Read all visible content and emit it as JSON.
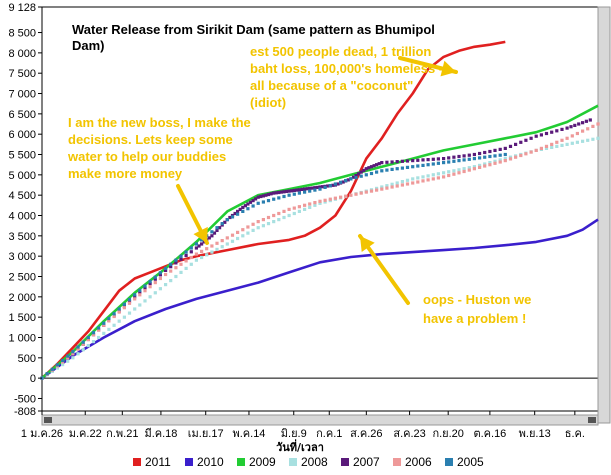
{
  "chart_data": {
    "type": "line",
    "title_lines": [
      "Water Release from Sirikit Dam (same pattern as Bhumipol",
      "Dam)"
    ],
    "xlabel": "วันที่/เวลา",
    "ylabel": "",
    "ylim": [
      -808,
      9128
    ],
    "x_range_days": [
      0,
      360
    ],
    "y_ticks": [
      -808,
      -500,
      0,
      500,
      1000,
      1500,
      2000,
      2500,
      3000,
      3500,
      4000,
      4500,
      5000,
      5500,
      6000,
      6500,
      7000,
      7500,
      8000,
      8500,
      9128
    ],
    "y_tick_labels": [
      "-808",
      "-500",
      "0",
      "500",
      "1 000",
      "1 500",
      "2 000",
      "2 500",
      "3 000",
      "3 500",
      "4 000",
      "4 500",
      "5 000",
      "5 500",
      "6 000",
      "6 500",
      "7 000",
      "7 500",
      "8 000",
      "8 500",
      "9 128"
    ],
    "x_ticks": [
      {
        "day": 0,
        "label": "1 ม.ค.26"
      },
      {
        "day": 28,
        "label": "ม.ค.22"
      },
      {
        "day": 52,
        "label": "ก.พ.21"
      },
      {
        "day": 77,
        "label": "มี.ค.18"
      },
      {
        "day": 106,
        "label": "เม.ย.17"
      },
      {
        "day": 134,
        "label": "พ.ค.14"
      },
      {
        "day": 163,
        "label": "มิ.ย.9"
      },
      {
        "day": 186,
        "label": "ก.ค.1"
      },
      {
        "day": 210,
        "label": "ส.ค.26"
      },
      {
        "day": 238,
        "label": "ส.ค.23"
      },
      {
        "day": 263,
        "label": "ก.ย.20"
      },
      {
        "day": 290,
        "label": "ต.ค.16"
      },
      {
        "day": 319,
        "label": "พ.ย.13"
      },
      {
        "day": 345,
        "label": "ธ.ค."
      }
    ],
    "series": [
      {
        "name": "2011",
        "color": "#e02020",
        "style": "line",
        "x": [
          0,
          10,
          20,
          30,
          40,
          50,
          60,
          70,
          80,
          90,
          100,
          120,
          140,
          160,
          170,
          180,
          190,
          200,
          210,
          220,
          230,
          240,
          250,
          260,
          270,
          280,
          290,
          300
        ],
        "y": [
          0,
          350,
          750,
          1150,
          1650,
          2150,
          2450,
          2600,
          2750,
          2900,
          3000,
          3150,
          3300,
          3400,
          3500,
          3700,
          4000,
          4600,
          5400,
          5900,
          6500,
          7000,
          7600,
          7900,
          8050,
          8150,
          8200,
          8270
        ]
      },
      {
        "name": "2010",
        "color": "#3a1fcc",
        "style": "line",
        "x": [
          0,
          20,
          40,
          60,
          80,
          100,
          120,
          140,
          160,
          180,
          200,
          220,
          240,
          260,
          280,
          300,
          320,
          340,
          350,
          360
        ],
        "y": [
          0,
          550,
          1000,
          1400,
          1700,
          1950,
          2150,
          2350,
          2600,
          2850,
          2980,
          3050,
          3100,
          3150,
          3200,
          3270,
          3350,
          3500,
          3650,
          3900
        ]
      },
      {
        "name": "2009",
        "color": "#22cc33",
        "style": "line",
        "x": [
          0,
          20,
          40,
          60,
          80,
          100,
          120,
          140,
          160,
          180,
          200,
          220,
          240,
          260,
          280,
          300,
          320,
          340,
          360
        ],
        "y": [
          0,
          650,
          1400,
          2100,
          2700,
          3350,
          4100,
          4500,
          4650,
          4800,
          5000,
          5200,
          5400,
          5600,
          5750,
          5900,
          6050,
          6300,
          6700
        ]
      },
      {
        "name": "2008",
        "color": "#a8e0e0",
        "style": "dots",
        "x": [
          0,
          20,
          40,
          60,
          80,
          100,
          120,
          140,
          160,
          180,
          200,
          220,
          240,
          260,
          280,
          300,
          320,
          340,
          360
        ],
        "y": [
          0,
          500,
          1100,
          1700,
          2300,
          2900,
          3300,
          3700,
          4000,
          4300,
          4500,
          4700,
          4900,
          5050,
          5200,
          5400,
          5600,
          5750,
          5900
        ]
      },
      {
        "name": "2007",
        "color": "#5a1a7a",
        "style": "dots",
        "x": [
          0,
          20,
          40,
          60,
          80,
          100,
          110,
          120,
          130,
          140,
          150,
          160,
          170,
          180,
          190,
          200,
          210,
          220,
          240,
          260,
          280,
          300,
          320,
          340,
          355
        ],
        "y": [
          0,
          600,
          1300,
          2000,
          2650,
          3200,
          3500,
          3900,
          4200,
          4450,
          4550,
          4600,
          4650,
          4700,
          4750,
          4900,
          5150,
          5300,
          5350,
          5400,
          5500,
          5650,
          5950,
          6150,
          6350
        ]
      },
      {
        "name": "2006",
        "color": "#ee9999",
        "style": "dots",
        "x": [
          0,
          20,
          40,
          60,
          80,
          100,
          120,
          140,
          160,
          180,
          200,
          220,
          240,
          260,
          280,
          300,
          320,
          340,
          360
        ],
        "y": [
          0,
          600,
          1300,
          1950,
          2550,
          3050,
          3450,
          3850,
          4150,
          4350,
          4500,
          4650,
          4800,
          4950,
          5150,
          5350,
          5600,
          5900,
          6250
        ]
      },
      {
        "name": "2005",
        "color": "#2a7fb0",
        "style": "dots",
        "x": [
          0,
          20,
          40,
          60,
          80,
          100,
          120,
          140,
          160,
          180,
          200,
          220,
          240,
          260,
          280,
          300
        ],
        "y": [
          0,
          650,
          1350,
          2050,
          2700,
          3300,
          3900,
          4300,
          4500,
          4650,
          4900,
          5100,
          5200,
          5300,
          5400,
          5500
        ]
      }
    ],
    "annotations": [
      {
        "lines": [
          "est 500 people dead, 1 trillion",
          "baht loss, 100,000's homeless -",
          "all because of a \"coconut\"",
          "(idiot)"
        ],
        "color": "#f2c400"
      },
      {
        "lines": [
          "I am the new boss, I make the",
          "decisions. Lets keep some",
          "water to help our buddies",
          "make more money"
        ],
        "color": "#f2c400"
      },
      {
        "lines": [
          "oops - Huston we",
          "have a problem !"
        ],
        "color": "#f2c400"
      }
    ],
    "legend_position": "bottom",
    "grid": false,
    "colors": {
      "background": "#ffffff",
      "arrow": "#f2c400",
      "axis": "#000000"
    }
  }
}
